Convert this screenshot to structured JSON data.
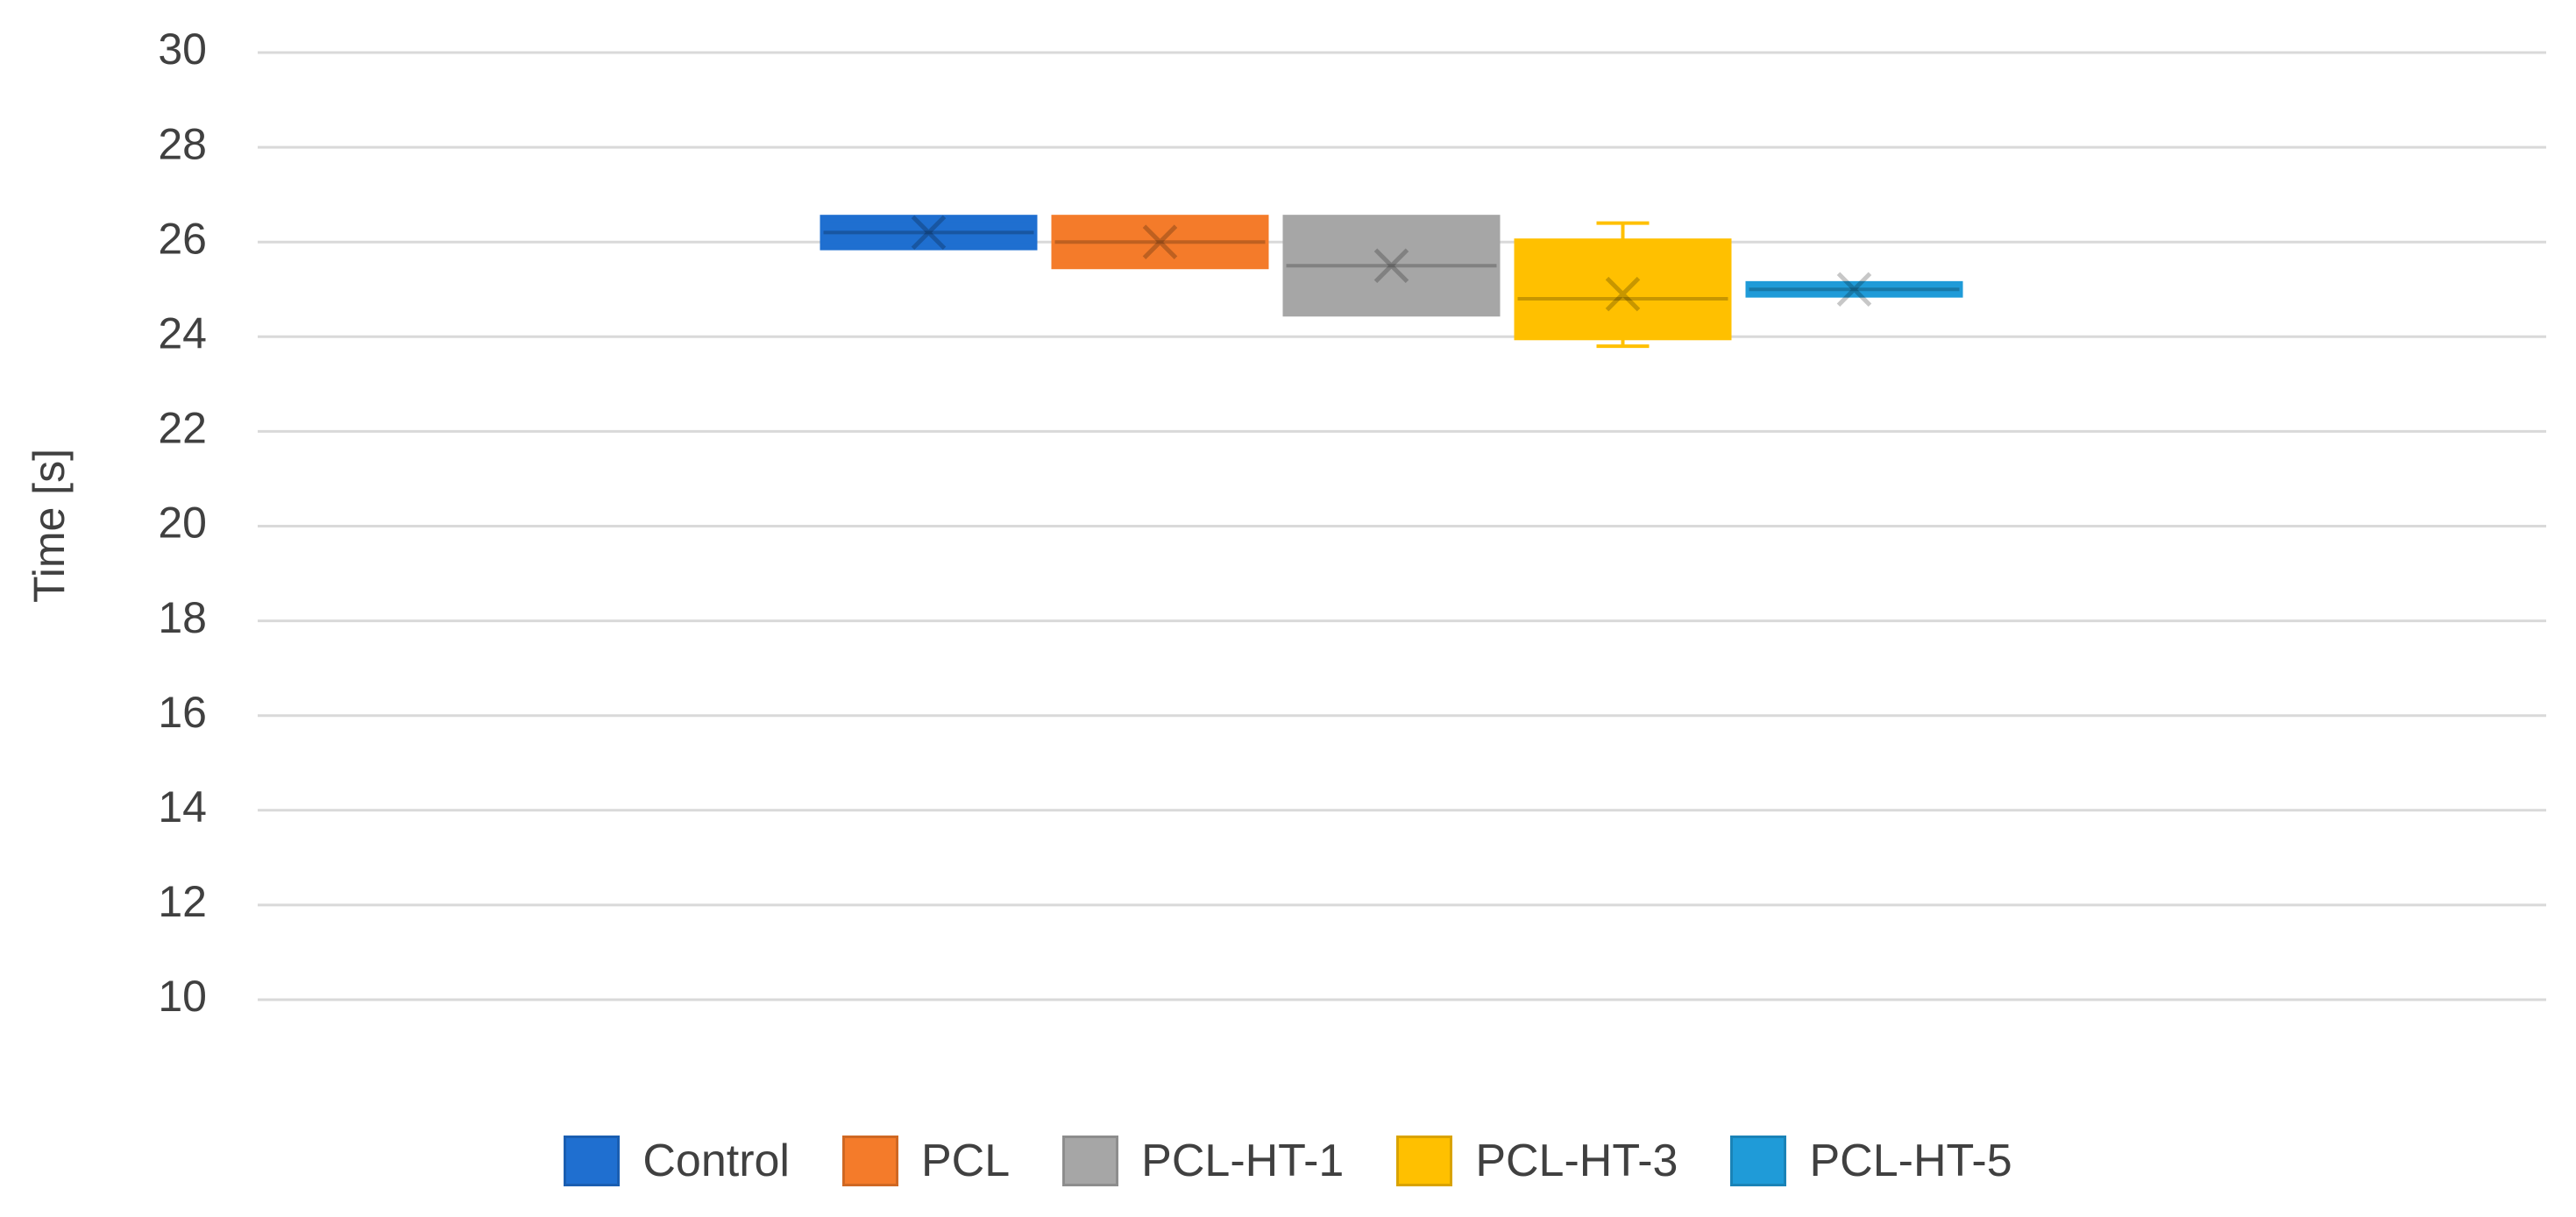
{
  "chart_data": {
    "type": "box",
    "y_label": "Time [s]",
    "series": [
      {
        "name": "Control",
        "color": "#1f6fd0",
        "min": 25.9,
        "q1": 25.9,
        "median": 26.2,
        "q3": 26.5,
        "max": 26.5,
        "mean": 26.2
      },
      {
        "name": "PCL",
        "color": "#f47b2a",
        "min": 25.5,
        "q1": 25.5,
        "median": 26,
        "q3": 26.5,
        "max": 26.5,
        "mean": 26
      },
      {
        "name": "PCL-HT-1",
        "color": "#a6a6a6",
        "min": 24.5,
        "q1": 24.5,
        "median": 25.5,
        "q3": 26.5,
        "max": 26.5,
        "mean": 25.5
      },
      {
        "name": "PCL-HT-3",
        "color": "#ffc000",
        "min": 23.8,
        "q1": 24,
        "median": 24.8,
        "q3": 26,
        "max": 26.4,
        "mean": 24.9
      },
      {
        "name": "PCL-HT-5",
        "color": "#1f9bd8",
        "min": 24.9,
        "q1": 24.9,
        "median": 25,
        "q3": 25.1,
        "max": 25.1,
        "mean": 25
      }
    ],
    "ylim": [
      10,
      30
    ],
    "yticks": [
      10,
      12,
      14,
      16,
      18,
      20,
      22,
      24,
      26,
      28,
      30
    ],
    "grid": true,
    "legend": "bottom"
  }
}
